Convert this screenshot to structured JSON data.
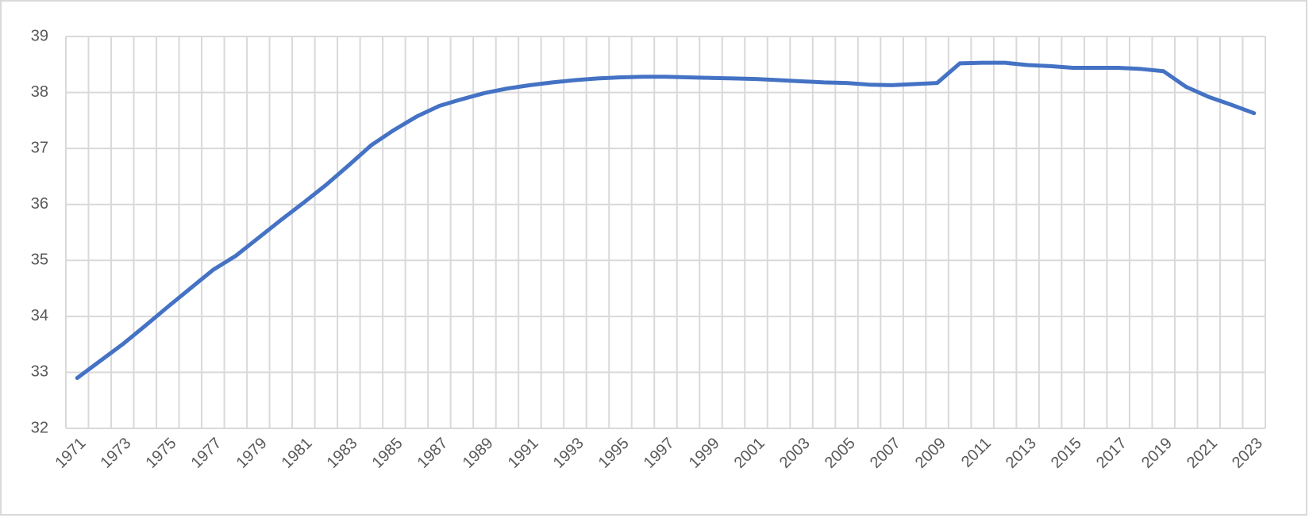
{
  "chart_data": {
    "type": "line",
    "categories": [
      "1971",
      null,
      "1973",
      null,
      "1975",
      null,
      "1977",
      null,
      "1979",
      null,
      "1981",
      null,
      "1983",
      null,
      "1985",
      null,
      "1987",
      null,
      "1989",
      null,
      "1991",
      null,
      "1993",
      null,
      "1995",
      null,
      "1997",
      null,
      "1999",
      null,
      "2001",
      null,
      "2003",
      null,
      "2005",
      null,
      "2007",
      null,
      "2009",
      null,
      "2011",
      null,
      "2013",
      null,
      "2015",
      null,
      "2017",
      null,
      "2019",
      null,
      "2021",
      null,
      "2023"
    ],
    "series": [
      {
        "color": "#4472c4",
        "values": [
          32.9,
          33.2,
          33.5,
          33.83,
          34.17,
          34.5,
          34.83,
          35.08,
          35.4,
          35.72,
          36.03,
          36.35,
          36.7,
          37.06,
          37.33,
          37.57,
          37.76,
          37.88,
          37.99,
          38.07,
          38.13,
          38.18,
          38.22,
          38.25,
          38.27,
          38.28,
          38.28,
          38.27,
          38.26,
          38.25,
          38.24,
          38.22,
          38.2,
          38.18,
          38.17,
          38.14,
          38.13,
          38.15,
          38.17,
          38.52,
          38.53,
          38.53,
          38.49,
          38.47,
          38.44,
          38.44,
          38.44,
          38.42,
          38.38,
          38.1,
          37.92,
          37.78,
          37.63
        ]
      }
    ],
    "ylim": [
      32,
      39
    ],
    "yticks": [
      32,
      33,
      34,
      35,
      36,
      37,
      38,
      39
    ],
    "grid": true
  }
}
